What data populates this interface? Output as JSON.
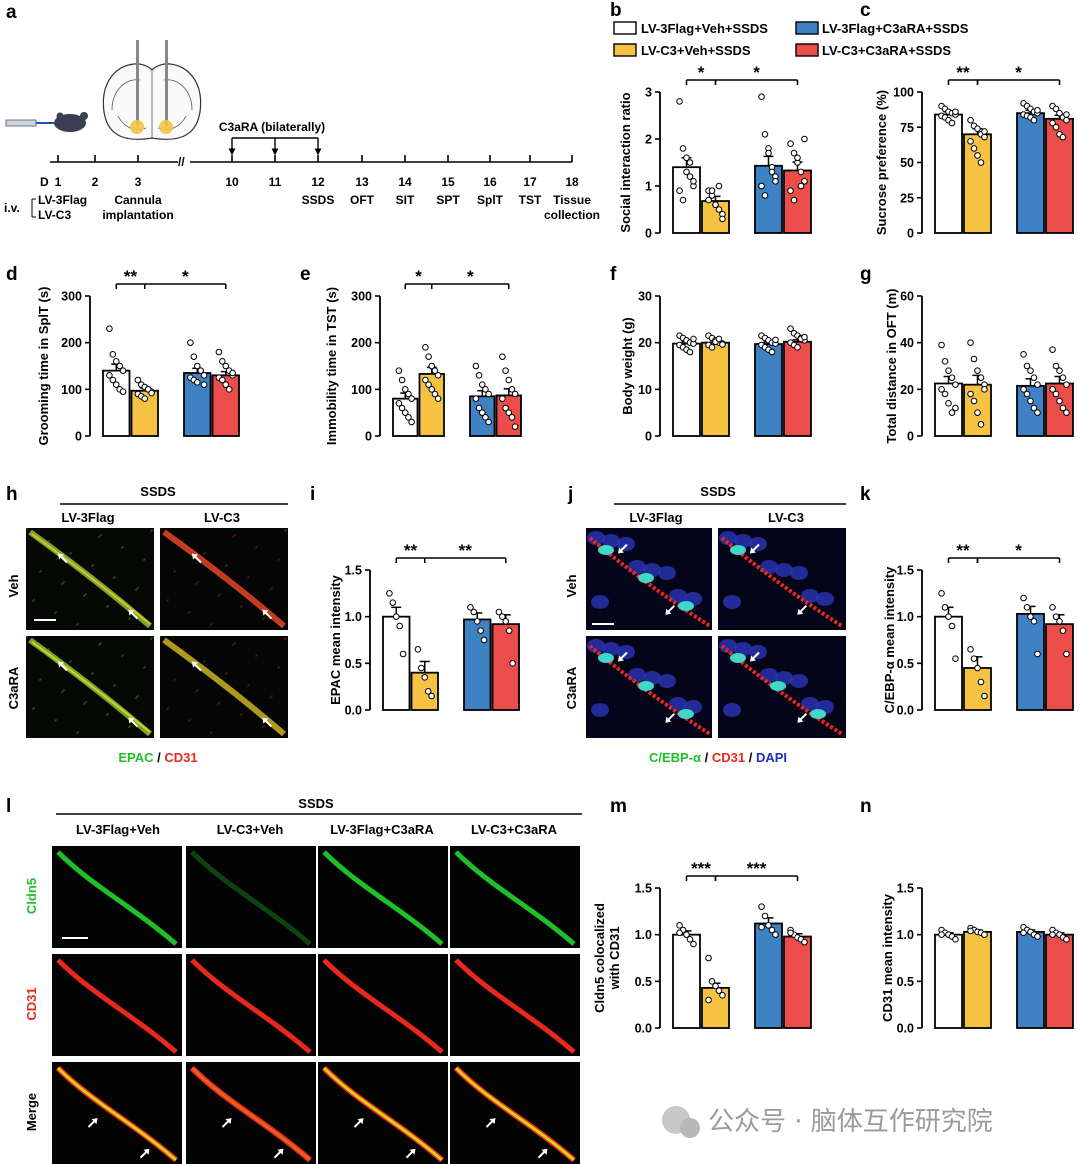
{
  "colors": {
    "white": "#ffffff",
    "yellow": "#f5c242",
    "blue": "#3f82c4",
    "red": "#ea4d4a",
    "green": "#1fbf2a",
    "cd31": "#e8281c",
    "dapi": "#2030c0"
  },
  "legend": [
    {
      "label": "LV-3Flag+Veh+SSDS",
      "color": "#ffffff"
    },
    {
      "label": "LV-3Flag+C3aRA+SSDS",
      "color": "#3f82c4"
    },
    {
      "label": "LV-C3+Veh+SSDS",
      "color": "#f5c242"
    },
    {
      "label": "LV-C3+C3aRA+SSDS",
      "color": "#ea4d4a"
    }
  ],
  "panel_a": {
    "letter": "a",
    "treatment": "C3aRA (bilaterally)",
    "day_prefix": "D",
    "days": [
      "1",
      "2",
      "3",
      "10",
      "11",
      "12",
      "13",
      "14",
      "15",
      "16",
      "17",
      "18"
    ],
    "iv": "i.v.",
    "iv_items": [
      "LV-3Flag",
      "LV-C3"
    ],
    "events": [
      "Cannula",
      "implantation",
      "SSDS",
      "OFT",
      "SIT",
      "SPT",
      "SplT",
      "TST",
      "Tissue",
      "collection"
    ]
  },
  "chart_data": [
    {
      "panel": "b",
      "type": "bar",
      "ylabel": "Social interaction ratio",
      "ylim": [
        0,
        3
      ],
      "ticks": [
        "0",
        "1",
        "2",
        "3"
      ],
      "values": [
        1.4,
        0.68,
        1.43,
        1.33
      ],
      "sem": [
        0.2,
        0.1,
        0.2,
        0.18
      ],
      "points": [
        [
          2.8,
          1.8,
          1.3,
          1.2,
          1.0,
          0.9,
          0.7,
          1.6,
          1.5,
          1.1
        ],
        [
          0.9,
          0.8,
          0.6,
          0.5,
          0.4,
          0.7,
          0.9,
          0.6,
          1.0,
          0.3
        ],
        [
          2.9,
          2.1,
          1.8,
          1.4,
          1.2,
          1.0,
          0.8,
          1.7,
          1.3,
          1.1
        ],
        [
          1.9,
          1.7,
          1.5,
          1.3,
          1.1,
          0.9,
          0.7,
          1.6,
          1.0,
          2.0
        ]
      ],
      "sig": [
        {
          "label": "*",
          "from": 0,
          "to": 1
        },
        {
          "label": "*",
          "from": 1,
          "to": 3
        }
      ]
    },
    {
      "panel": "c",
      "type": "bar",
      "ylabel": "Sucrose preference (%)",
      "ylim": [
        0,
        100
      ],
      "ticks": [
        "0",
        "25",
        "50",
        "75",
        "100"
      ],
      "values": [
        84,
        70,
        85,
        81
      ],
      "sem": [
        2,
        4,
        2,
        2.5
      ],
      "points": [
        [
          90,
          88,
          86,
          85,
          84,
          83,
          82,
          80,
          78,
          86
        ],
        [
          80,
          76,
          74,
          70,
          68,
          65,
          60,
          55,
          50,
          72
        ],
        [
          92,
          90,
          88,
          86,
          85,
          84,
          83,
          82,
          80,
          87
        ],
        [
          90,
          88,
          85,
          82,
          80,
          78,
          75,
          70,
          68,
          84
        ]
      ],
      "sig": [
        {
          "label": "**",
          "from": 0,
          "to": 1
        },
        {
          "label": "*",
          "from": 1,
          "to": 3
        }
      ]
    },
    {
      "panel": "d",
      "type": "bar",
      "ylabel": "Grooming time in SplT (s)",
      "ylim": [
        0,
        300
      ],
      "ticks": [
        "0",
        "100",
        "200",
        "300"
      ],
      "values": [
        140,
        97,
        135,
        130
      ],
      "sem": [
        14,
        6,
        10,
        8
      ],
      "points": [
        [
          230,
          175,
          160,
          150,
          140,
          130,
          120,
          110,
          100,
          95
        ],
        [
          120,
          110,
          105,
          100,
          95,
          90,
          85,
          80,
          100,
          92
        ],
        [
          200,
          170,
          150,
          140,
          130,
          125,
          120,
          115,
          140,
          110
        ],
        [
          180,
          160,
          150,
          140,
          130,
          125,
          120,
          110,
          100,
          135
        ]
      ],
      "sig": [
        {
          "label": "**",
          "from": 0,
          "to": 1
        },
        {
          "label": "*",
          "from": 1,
          "to": 3
        }
      ]
    },
    {
      "panel": "e",
      "type": "bar",
      "ylabel": "Immobility time in TST (s)",
      "ylim": [
        0,
        300
      ],
      "ticks": [
        "0",
        "100",
        "200",
        "300"
      ],
      "values": [
        80,
        133,
        85,
        87
      ],
      "sem": [
        12,
        14,
        12,
        14
      ],
      "points": [
        [
          140,
          120,
          100,
          90,
          80,
          70,
          60,
          50,
          40,
          30
        ],
        [
          190,
          170,
          150,
          140,
          130,
          120,
          110,
          100,
          90,
          80
        ],
        [
          150,
          130,
          110,
          100,
          90,
          80,
          60,
          50,
          40,
          30
        ],
        [
          170,
          140,
          120,
          100,
          90,
          80,
          60,
          50,
          40,
          20
        ]
      ],
      "sig": [
        {
          "label": "*",
          "from": 0,
          "to": 1
        },
        {
          "label": "*",
          "from": 1,
          "to": 3
        }
      ]
    },
    {
      "panel": "f",
      "type": "bar",
      "ylabel": "Body weight (g)",
      "ylim": [
        0,
        30
      ],
      "ticks": [
        "0",
        "10",
        "20",
        "30"
      ],
      "values": [
        19.8,
        20,
        19.7,
        20.2
      ],
      "sem": [
        0.4,
        0.4,
        0.4,
        0.4
      ],
      "points": [
        [
          21.5,
          21,
          20.5,
          20,
          19.8,
          19.5,
          19,
          18.5,
          18,
          20.8
        ],
        [
          21.5,
          21,
          20.5,
          20,
          19.8,
          19.5,
          19,
          20.2,
          20.8,
          19.6
        ],
        [
          21.5,
          21,
          20.5,
          20,
          19.8,
          19.5,
          19,
          18.5,
          18,
          20.6
        ],
        [
          23,
          22,
          21.5,
          21,
          20.5,
          20,
          19.5,
          19,
          20.8,
          21.2
        ]
      ],
      "sig": []
    },
    {
      "panel": "g",
      "type": "bar",
      "ylabel": "Total distance in OFT (m)",
      "ylim": [
        0,
        60
      ],
      "ticks": [
        "0",
        "20",
        "40",
        "60"
      ],
      "values": [
        22.5,
        22,
        21.5,
        22.5
      ],
      "sem": [
        3,
        4,
        3,
        3
      ],
      "points": [
        [
          39,
          32,
          28,
          25,
          22,
          20,
          18,
          14,
          10,
          12
        ],
        [
          40,
          33,
          28,
          25,
          22,
          18,
          15,
          10,
          5,
          20
        ],
        [
          35,
          30,
          28,
          25,
          22,
          20,
          18,
          15,
          12,
          10
        ],
        [
          37,
          30,
          28,
          25,
          22,
          20,
          18,
          15,
          12,
          10
        ]
      ],
      "sig": []
    },
    {
      "panel": "i",
      "type": "bar",
      "ylabel": "EPAC mean intensity",
      "ylim": [
        0,
        1.5
      ],
      "ticks": [
        "0.0",
        "0.5",
        "1.0",
        "1.5"
      ],
      "values": [
        1.0,
        0.4,
        0.97,
        0.92
      ],
      "sem": [
        0.1,
        0.12,
        0.07,
        0.1
      ],
      "points": [
        [
          1.25,
          1.15,
          1.0,
          0.9,
          0.6
        ],
        [
          0.65,
          0.45,
          0.35,
          0.2,
          0.15
        ],
        [
          1.1,
          1.05,
          0.95,
          0.85,
          0.75
        ],
        [
          1.05,
          1.0,
          0.95,
          0.85,
          0.5
        ]
      ],
      "sig": [
        {
          "label": "**",
          "from": 0,
          "to": 1
        },
        {
          "label": "**",
          "from": 1,
          "to": 3
        }
      ]
    },
    {
      "panel": "k",
      "type": "bar",
      "ylabel": "C/EBP-α mean intensity",
      "ylim": [
        0,
        1.5
      ],
      "ticks": [
        "0.0",
        "0.5",
        "1.0",
        "1.5"
      ],
      "values": [
        1.0,
        0.45,
        1.03,
        0.92
      ],
      "sem": [
        0.1,
        0.12,
        0.08,
        0.1
      ],
      "points": [
        [
          1.25,
          1.1,
          1.0,
          0.9,
          0.55
        ],
        [
          0.65,
          0.55,
          0.45,
          0.3,
          0.15
        ],
        [
          1.2,
          1.1,
          1.0,
          0.95,
          0.6
        ],
        [
          1.1,
          1.0,
          0.95,
          0.85,
          0.6
        ]
      ],
      "sig": [
        {
          "label": "**",
          "from": 0,
          "to": 1
        },
        {
          "label": "*",
          "from": 1,
          "to": 3
        }
      ]
    },
    {
      "panel": "m",
      "type": "bar",
      "ylabel": "Cldn5 colocalized with CD31",
      "ylim": [
        0,
        1.5
      ],
      "ticks": [
        "0.0",
        "0.5",
        "1.0",
        "1.5"
      ],
      "values": [
        1.0,
        0.43,
        1.12,
        0.98
      ],
      "sem": [
        0.04,
        0.05,
        0.06,
        0.03
      ],
      "points": [
        [
          1.1,
          1.05,
          1.0,
          0.95,
          0.9,
          1.02
        ],
        [
          0.75,
          0.5,
          0.45,
          0.4,
          0.35,
          0.3
        ],
        [
          1.3,
          1.2,
          1.1,
          1.05,
          1.0,
          1.08
        ],
        [
          1.05,
          1.0,
          0.97,
          0.95,
          0.92,
          1.02
        ]
      ],
      "sig": [
        {
          "label": "***",
          "from": 0,
          "to": 1
        },
        {
          "label": "***",
          "from": 1,
          "to": 3
        }
      ]
    },
    {
      "panel": "n",
      "type": "bar",
      "ylabel": "CD31 mean intensity",
      "ylim": [
        0,
        1.5
      ],
      "ticks": [
        "0.0",
        "0.5",
        "1.0",
        "1.5"
      ],
      "values": [
        1.0,
        1.03,
        1.03,
        1.0
      ],
      "sem": [
        0.02,
        0.02,
        0.02,
        0.02
      ],
      "points": [
        [
          1.05,
          1.02,
          1.0,
          0.98,
          0.95,
          1.0
        ],
        [
          1.07,
          1.05,
          1.03,
          1.02,
          1.0,
          1.04
        ],
        [
          1.08,
          1.05,
          1.03,
          1.0,
          0.98,
          1.02
        ],
        [
          1.05,
          1.02,
          1.0,
          0.97,
          0.95,
          1.0
        ]
      ],
      "sig": []
    }
  ],
  "panel_h": {
    "letter": "h",
    "header": "SSDS",
    "cols": [
      "LV-3Flag",
      "LV-C3"
    ],
    "rows": [
      "Veh",
      "C3aRA"
    ],
    "stain1": "EPAC",
    "sep": " / ",
    "stain2": "CD31"
  },
  "panel_j": {
    "letter": "j",
    "header": "SSDS",
    "cols": [
      "LV-3Flag",
      "LV-C3"
    ],
    "rows": [
      "Veh",
      "C3aRA"
    ],
    "stain1": "C/EBP-α",
    "sep": " / ",
    "stain2": "CD31",
    "sep2": " / ",
    "stain3": "DAPI"
  },
  "panel_l": {
    "letter": "l",
    "header": "SSDS",
    "cols": [
      "LV-3Flag+Veh",
      "LV-C3+Veh",
      "LV-3Flag+C3aRA",
      "LV-C3+C3aRA"
    ],
    "rows": [
      "Cldn5",
      "CD31",
      "Merge"
    ]
  },
  "watermark": "公众号 · 脑体互作研究院"
}
